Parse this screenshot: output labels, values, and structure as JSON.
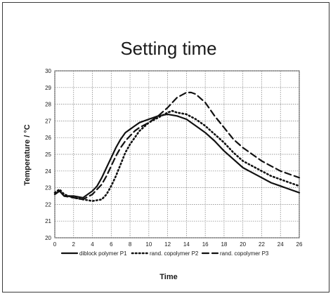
{
  "chart_data": {
    "type": "line",
    "title": "Setting time",
    "xlabel": "Time",
    "ylabel": "Temperature / °C",
    "xlim": [
      0,
      26
    ],
    "ylim": [
      20,
      30
    ],
    "xticks": [
      0,
      2,
      4,
      6,
      8,
      10,
      12,
      14,
      16,
      18,
      20,
      22,
      24,
      26
    ],
    "yticks": [
      20,
      21,
      22,
      23,
      24,
      25,
      26,
      27,
      28,
      29,
      30
    ],
    "grid": true,
    "legend_position": "bottom",
    "series": [
      {
        "name": "diblock polymer P1",
        "color": "#111111",
        "style": "solid",
        "x": [
          0,
          0.5,
          1,
          2,
          3,
          3.5,
          4,
          4.5,
          5,
          5.5,
          6,
          6.5,
          7,
          7.5,
          8,
          8.5,
          9,
          10,
          11,
          12,
          13,
          14,
          15,
          16,
          17,
          18,
          19,
          20,
          21,
          22,
          23,
          24,
          25,
          26
        ],
        "y": [
          22.6,
          22.8,
          22.5,
          22.5,
          22.4,
          22.6,
          22.8,
          23.1,
          23.6,
          24.2,
          24.8,
          25.4,
          25.9,
          26.3,
          26.5,
          26.7,
          26.9,
          27.1,
          27.3,
          27.4,
          27.3,
          27.1,
          26.7,
          26.3,
          25.8,
          25.2,
          24.7,
          24.2,
          23.9,
          23.6,
          23.3,
          23.1,
          22.9,
          22.7
        ]
      },
      {
        "name": "rand. copolymer P2",
        "color": "#111111",
        "style": "dotted",
        "x": [
          0,
          0.5,
          1,
          2,
          3,
          4,
          5,
          5.5,
          6,
          6.5,
          7,
          7.5,
          8,
          8.5,
          9,
          10,
          11,
          12,
          12.5,
          13,
          14,
          15,
          16,
          17,
          18,
          19,
          20,
          21,
          22,
          23,
          24,
          25,
          26
        ],
        "y": [
          22.7,
          22.9,
          22.6,
          22.4,
          22.3,
          22.2,
          22.3,
          22.6,
          23.1,
          23.7,
          24.4,
          25.1,
          25.6,
          26.0,
          26.4,
          26.9,
          27.2,
          27.5,
          27.6,
          27.5,
          27.4,
          27.1,
          26.7,
          26.2,
          25.7,
          25.1,
          24.6,
          24.3,
          24.0,
          23.7,
          23.5,
          23.3,
          23.1
        ]
      },
      {
        "name": "rand. copolymer P3",
        "color": "#111111",
        "style": "dashed",
        "x": [
          0,
          0.5,
          1,
          2,
          3,
          4,
          5,
          5.5,
          6,
          6.5,
          7,
          7.5,
          8,
          8.5,
          9,
          10,
          11,
          12,
          13,
          14,
          14.5,
          15,
          16,
          17,
          18,
          19,
          20,
          21,
          22,
          23,
          24,
          25,
          26
        ],
        "y": [
          22.6,
          22.8,
          22.5,
          22.4,
          22.3,
          22.6,
          23.2,
          23.7,
          24.3,
          24.9,
          25.4,
          25.8,
          26.1,
          26.4,
          26.6,
          26.9,
          27.3,
          27.8,
          28.4,
          28.7,
          28.7,
          28.6,
          28.1,
          27.3,
          26.6,
          25.9,
          25.4,
          25.0,
          24.6,
          24.3,
          24.0,
          23.8,
          23.6
        ]
      }
    ]
  }
}
